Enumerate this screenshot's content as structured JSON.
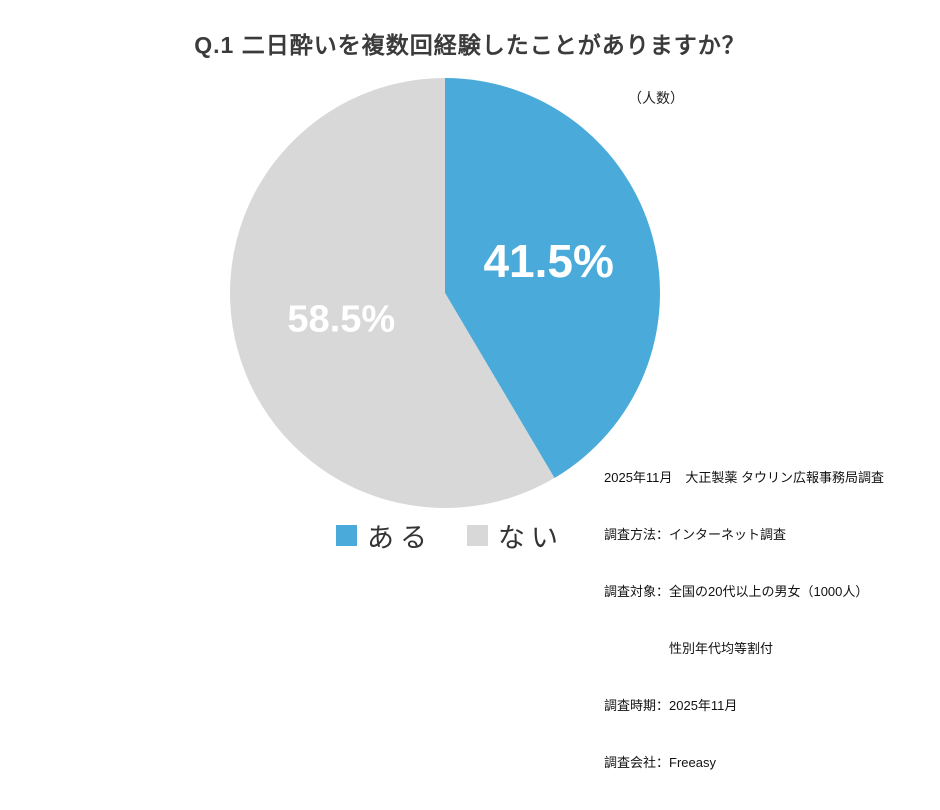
{
  "page": {
    "title": "Q.1 二日酔いを複数回経験したことがありますか？"
  },
  "chart_data": {
    "type": "pie",
    "title": "Q.1 二日酔いを複数回経験したことがありますか？",
    "unit_label": "（人数）",
    "categories": [
      "ある",
      "ない"
    ],
    "values": [
      41.5,
      58.5
    ],
    "value_labels": [
      "41.5%",
      "58.5%"
    ],
    "colors": [
      "#4aabdb",
      "#d8d8d8"
    ],
    "label_color": "#ffffff",
    "start_angle_deg": -90,
    "legend_position": "bottom"
  },
  "legend": {
    "items": [
      {
        "label": "ある",
        "color": "#4aabdb"
      },
      {
        "label": "ない",
        "color": "#d8d8d8"
      }
    ]
  },
  "footnote": {
    "lines": [
      "2025年11月　大正製薬 タウリン広報事務局調査",
      "調査方法：インターネット調査",
      "調査対象：全国の20代以上の男女（1000人）",
      "　　　　　性別年代均等割付",
      "調査時期：2025年11月",
      "調査会社：Freeasy"
    ]
  }
}
